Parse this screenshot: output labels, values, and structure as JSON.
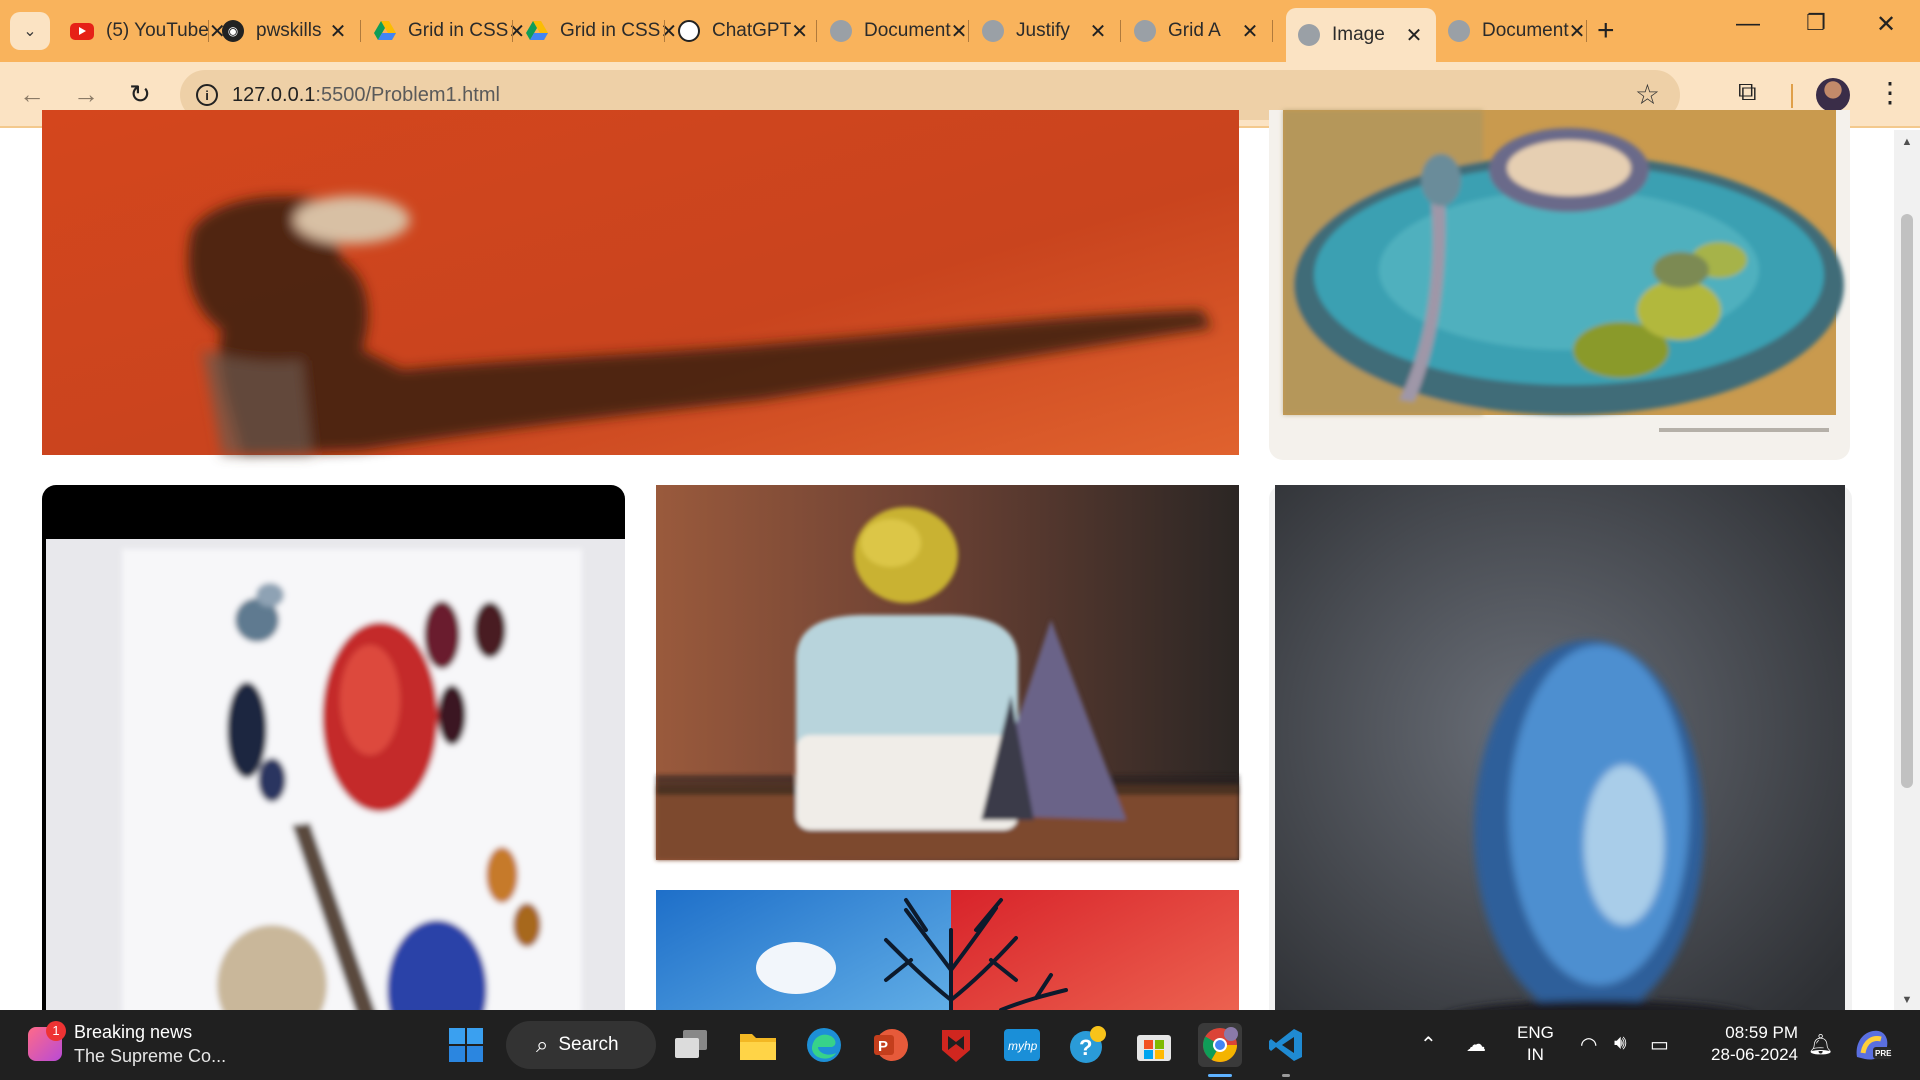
{
  "browser": {
    "tabs": [
      {
        "title": "(5) YouTube",
        "favicon": "youtube-icon",
        "active": false
      },
      {
        "title": "pwskills",
        "favicon": "pwskills-icon",
        "active": false
      },
      {
        "title": "Grid in CSS",
        "favicon": "google-drive-icon",
        "active": false
      },
      {
        "title": "Grid in CSS",
        "favicon": "google-drive-icon",
        "active": false
      },
      {
        "title": "ChatGPT",
        "favicon": "chatgpt-icon",
        "active": false
      },
      {
        "title": "Document",
        "favicon": "globe-icon",
        "active": false
      },
      {
        "title": "Justify",
        "favicon": "globe-icon",
        "active": false
      },
      {
        "title": "Grid A",
        "favicon": "globe-icon",
        "active": false
      },
      {
        "title": "Image",
        "favicon": "globe-icon",
        "active": true
      },
      {
        "title": "Document",
        "favicon": "globe-icon",
        "active": false
      }
    ],
    "address": {
      "host": "127.0.0.1",
      "path": ":5500/Problem1.html"
    }
  },
  "taskbar": {
    "news": {
      "badge": "1",
      "headline": "Breaking news",
      "subtitle": "The Supreme Co..."
    },
    "search_label": "Search",
    "language": {
      "line1": "ENG",
      "line2": "IN"
    },
    "clock": {
      "time": "08:59 PM",
      "date": "28-06-2024"
    }
  },
  "colors": {
    "tab_strip": "#f9b35c",
    "toolbar": "#fbe3c3",
    "taskbar": "#202020"
  }
}
